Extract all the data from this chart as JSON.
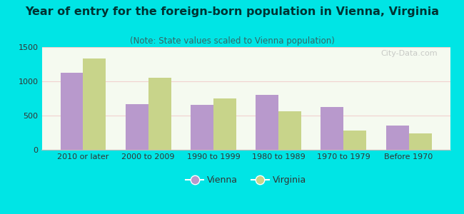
{
  "title": "Year of entry for the foreign-born population in Vienna, Virginia",
  "subtitle": "(Note: State values scaled to Vienna population)",
  "categories": [
    "2010 or later",
    "2000 to 2009",
    "1990 to 1999",
    "1980 to 1989",
    "1970 to 1979",
    "Before 1970"
  ],
  "vienna": [
    1130,
    670,
    655,
    800,
    620,
    350
  ],
  "virginia": [
    1330,
    1055,
    750,
    565,
    285,
    240
  ],
  "vienna_color": "#b899cc",
  "virginia_color": "#c8d48a",
  "background_outer": "#00e5e5",
  "background_inner_top": "#e8f0d0",
  "background_inner_bottom": "#f5faf0",
  "ylim": [
    0,
    1500
  ],
  "yticks": [
    0,
    500,
    1000,
    1500
  ],
  "bar_width": 0.35,
  "legend_labels": [
    "Vienna",
    "Virginia"
  ],
  "title_fontsize": 11.5,
  "subtitle_fontsize": 8.5,
  "tick_fontsize": 8,
  "ytick_fontsize": 8
}
